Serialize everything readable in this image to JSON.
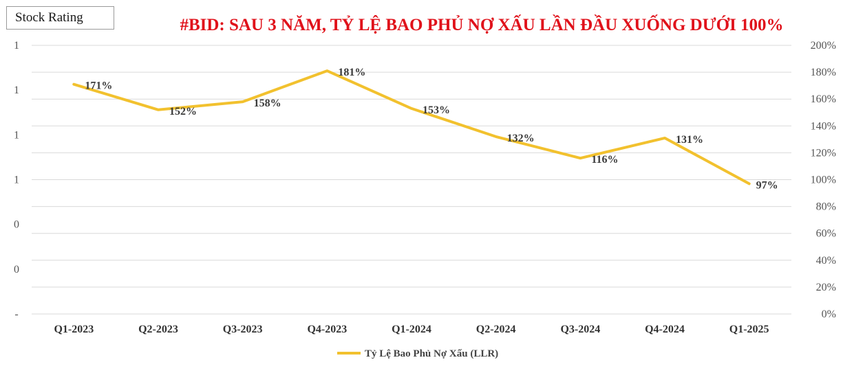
{
  "header": {
    "badge": "Stock Rating",
    "title": "#BID: SAU 3 NĂM, TỶ LỆ BAO PHỦ NỢ XẤU LẦN ĐẦU XUỐNG DƯỚI 100%"
  },
  "colors": {
    "line": "#f2c12e",
    "title": "#e0121b",
    "highlight_label": "#e0121b",
    "grid": "#d9d9d9"
  },
  "chart_data": {
    "type": "line",
    "title": "#BID: SAU 3 NĂM, TỶ LỆ BAO PHỦ NỢ XẤU LẦN ĐẦU XUỐNG DƯỚI 100%",
    "categories": [
      "Q1-2023",
      "Q2-2023",
      "Q3-2023",
      "Q4-2023",
      "Q1-2024",
      "Q2-2024",
      "Q3-2024",
      "Q4-2024",
      "Q1-2025"
    ],
    "series": [
      {
        "name": "Tỷ Lệ Bao Phủ Nợ Xấu (LLR)",
        "values": [
          171,
          152,
          158,
          181,
          153,
          132,
          116,
          131,
          97
        ],
        "unit": "%",
        "data_labels": [
          "171%",
          "152%",
          "158%",
          "181%",
          "153%",
          "132%",
          "116%",
          "131%",
          "97%"
        ]
      }
    ],
    "y_right": {
      "range": [
        0,
        200
      ],
      "ticks": [
        "0%",
        "20%",
        "40%",
        "60%",
        "80%",
        "100%",
        "120%",
        "140%",
        "160%",
        "180%",
        "200%"
      ]
    },
    "y_left": {
      "ticks": [
        "-",
        "0",
        "0",
        "1",
        "1",
        "1",
        "1"
      ]
    },
    "grid": true,
    "legend_position": "bottom",
    "highlighted_point": "Q1-2025"
  }
}
